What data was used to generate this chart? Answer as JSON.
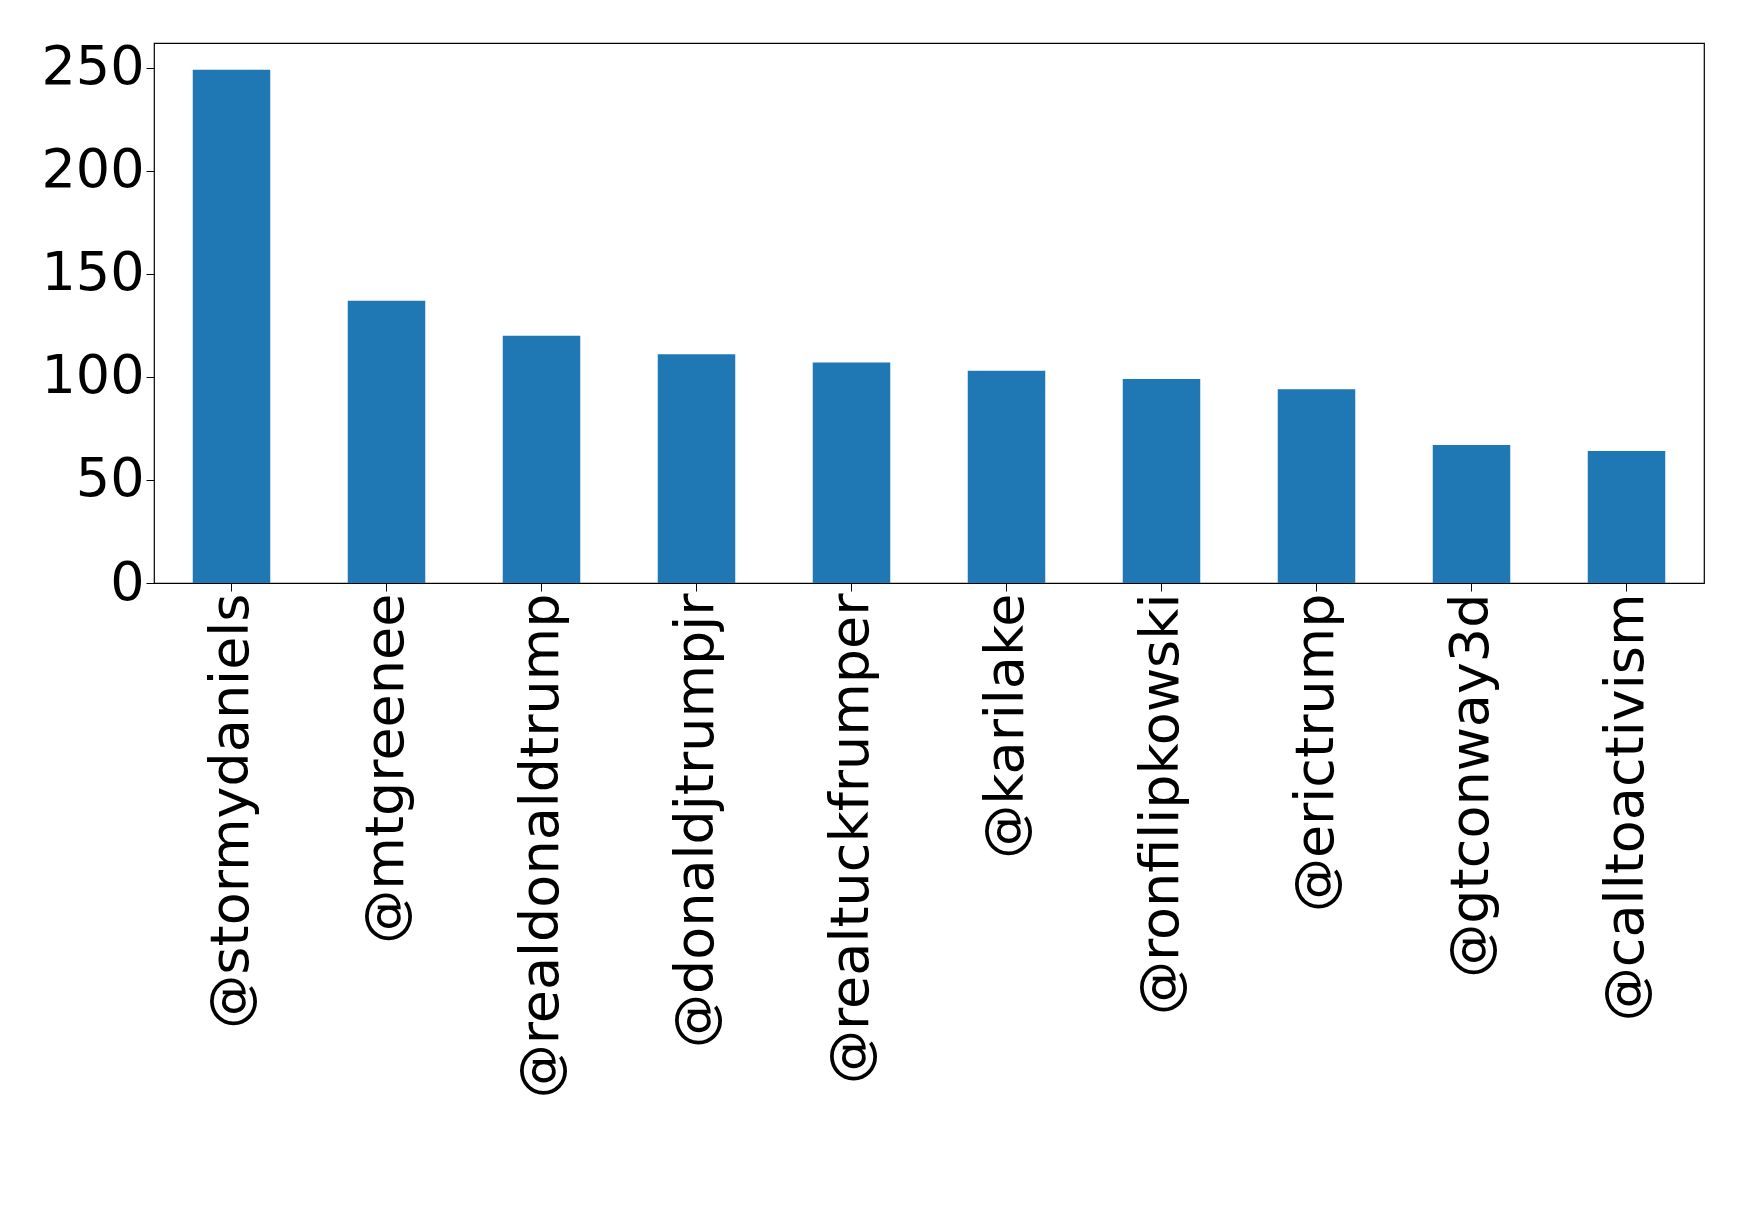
{
  "chart_data": {
    "type": "bar",
    "categories": [
      "@stormydaniels",
      "@mtgreenee",
      "@realdonaldtrump",
      "@donaldjtrumpjr",
      "@realtuckfrumper",
      "@karilake",
      "@ronfilipkowski",
      "@erictrump",
      "@gtconway3d",
      "@calltoactivism"
    ],
    "values": [
      249,
      137,
      120,
      111,
      107,
      103,
      99,
      94,
      67,
      64
    ],
    "color": "#1f77b4",
    "ylim": [
      0,
      262
    ],
    "yticks": [
      0,
      50,
      100,
      150,
      200,
      250
    ],
    "grid": false
  }
}
